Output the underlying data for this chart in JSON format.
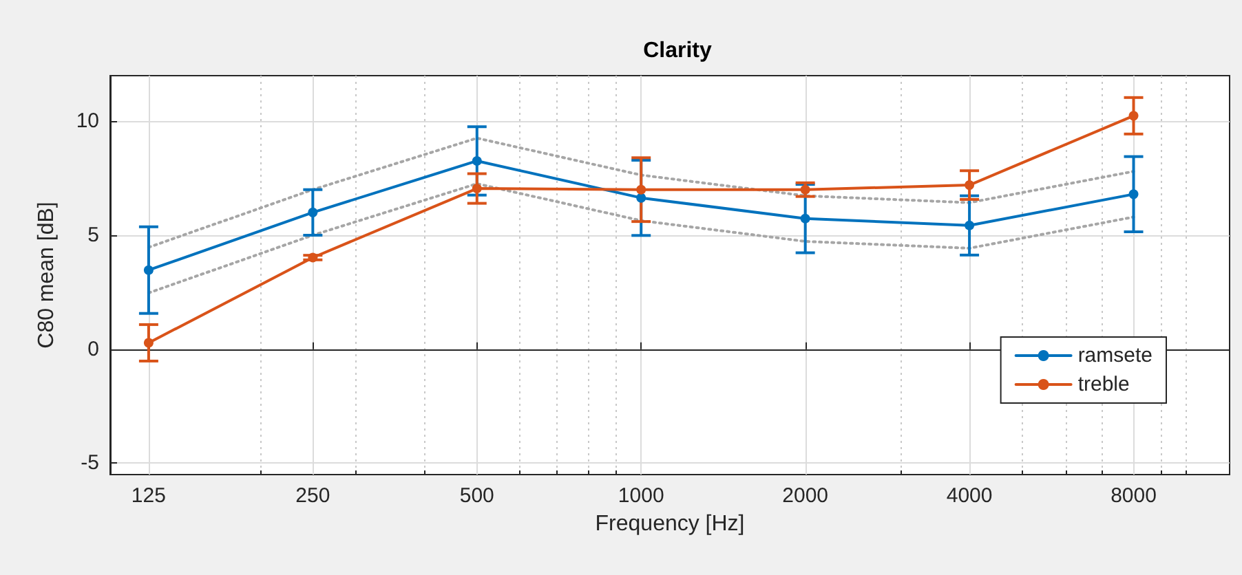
{
  "chart_data": {
    "type": "line",
    "title": "Clarity",
    "xlabel": "Frequency [Hz]",
    "ylabel": "C80 mean [dB]",
    "x": [
      125,
      250,
      500,
      1000,
      2000,
      4000,
      8000
    ],
    "series": [
      {
        "name": "ramsete",
        "color": "#0072bd",
        "values": [
          3.47,
          6.0,
          8.26,
          6.64,
          5.73,
          5.43,
          6.8
        ],
        "errors": [
          1.9,
          1.0,
          1.5,
          1.65,
          1.5,
          1.3,
          1.65
        ]
      },
      {
        "name": "treble",
        "color": "#d95319",
        "values": [
          0.28,
          4.02,
          7.05,
          7.0,
          7.0,
          7.2,
          10.24
        ],
        "errors": [
          0.8,
          0.1,
          0.65,
          1.4,
          0.3,
          0.63,
          0.8
        ]
      },
      {
        "color": "#a6a6a6",
        "line_style": "dotted",
        "marker": "none",
        "values": [
          4.47,
          7.0,
          9.26,
          7.64,
          6.73,
          6.43,
          7.8
        ]
      },
      {
        "color": "#a6a6a6",
        "line_style": "dotted",
        "marker": "none",
        "values": [
          2.47,
          5.0,
          7.26,
          5.64,
          4.73,
          4.43,
          5.8
        ]
      }
    ],
    "log": "x",
    "xlim": [
      106.25,
      12000
    ],
    "xticks": [
      125,
      {
        "value": 200,
        "label": null
      },
      250,
      {
        "value": 300,
        "label": null
      },
      {
        "value": 400,
        "label": null
      },
      500,
      {
        "value": 600,
        "label": null
      },
      {
        "value": 700,
        "label": null
      },
      {
        "value": 800,
        "label": null
      },
      {
        "value": 900,
        "label": null
      },
      1000,
      2000,
      {
        "value": 3000,
        "label": null
      },
      4000,
      {
        "value": 5000,
        "label": null
      },
      {
        "value": 6000,
        "label": null
      },
      {
        "value": 7000,
        "label": null
      },
      8000,
      {
        "value": 9000,
        "label": null
      },
      {
        "value": 10000,
        "label": null
      }
    ],
    "ylim": [
      -5.5,
      12
    ],
    "yticks": [
      -5,
      0,
      5,
      10
    ],
    "grid": true,
    "legend": "bottom right",
    "marker": "circle",
    "line_style": "solid"
  }
}
